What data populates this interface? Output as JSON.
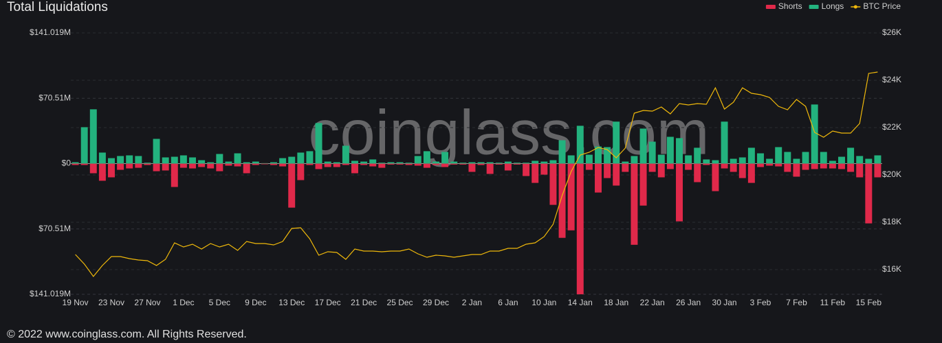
{
  "chart_data": {
    "type": "bar",
    "title": "Total Liquidations",
    "watermark": "coinglass.com",
    "footer": "© 2022 www.coinglass.com. All Rights Reserved.",
    "legend": "top-right",
    "grid": true,
    "categories": [
      "19 Nov",
      null,
      null,
      null,
      "23 Nov",
      null,
      null,
      null,
      "27 Nov",
      null,
      null,
      null,
      "1 Dec",
      null,
      null,
      null,
      "5 Dec",
      null,
      null,
      null,
      "9 Dec",
      null,
      null,
      null,
      "13 Dec",
      null,
      null,
      null,
      "17 Dec",
      null,
      null,
      null,
      "21 Dec",
      null,
      null,
      null,
      "25 Dec",
      null,
      null,
      null,
      "29 Dec",
      null,
      null,
      null,
      "2 Jan",
      null,
      null,
      null,
      "6 Jan",
      null,
      null,
      null,
      "10 Jan",
      null,
      null,
      null,
      "14 Jan",
      null,
      null,
      null,
      "18 Jan",
      null,
      null,
      null,
      "22 Jan",
      null,
      null,
      null,
      "26 Jan",
      null,
      null,
      null,
      "30 Jan",
      null,
      null,
      null,
      "3 Feb",
      null,
      null,
      null,
      "7 Feb",
      null,
      null,
      null,
      "11 Feb",
      null,
      null,
      null,
      "15 Feb",
      null
    ],
    "series": [
      {
        "name": "Shorts",
        "color": "#e0294a",
        "values": [
          -1.5,
          -1.5,
          -10.4,
          -18.5,
          -14.8,
          -6.7,
          -5.2,
          -4.5,
          -1.5,
          -8.2,
          -7.4,
          -25.2,
          -4.5,
          -5.2,
          -3.7,
          -5.2,
          -8.2,
          -2.2,
          -3.0,
          -10.4,
          -1.5,
          -0.7,
          -1.5,
          -3.0,
          -47.5,
          -17.8,
          -1.5,
          -5.9,
          -3.7,
          -3.7,
          -1.5,
          -10.4,
          -1.5,
          -3.0,
          -4.5,
          -1.0,
          -1.0,
          -1.5,
          -2.2,
          -4.5,
          -1.5,
          -3.7,
          -1.0,
          -1.0,
          -8.9,
          -1.5,
          -11.1,
          -1.0,
          -7.4,
          -1.0,
          -13.4,
          -20.8,
          -11.9,
          -44.5,
          -80.1,
          -72.0,
          -141.0,
          -6.7,
          -31.2,
          -15.6,
          -23.7,
          -8.9,
          -87.6,
          -45.3,
          -8.9,
          -14.8,
          -5.9,
          -62.3,
          -6.7,
          -20.0,
          -1.5,
          -29.7,
          -5.2,
          -8.9,
          -15.6,
          -20.8,
          -3.7,
          -2.2,
          -3.0,
          -8.9,
          -14.1,
          -6.7,
          -5.9,
          -5.2,
          -5.2,
          -5.9,
          -8.9,
          -14.8,
          -64.5,
          -14.8
        ]
      },
      {
        "name": "Longs",
        "color": "#23b27e",
        "values": [
          1.5,
          39.3,
          58.6,
          11.9,
          5.9,
          8.2,
          8.9,
          8.2,
          1.0,
          26.7,
          6.7,
          7.4,
          8.9,
          6.7,
          3.7,
          1.5,
          10.4,
          2.2,
          11.1,
          1.5,
          2.2,
          0.5,
          1.5,
          5.9,
          7.4,
          11.9,
          13.4,
          43.8,
          2.2,
          1.5,
          19.3,
          3.0,
          2.2,
          4.5,
          1.0,
          1.5,
          1.5,
          1.0,
          8.2,
          13.4,
          2.2,
          12.6,
          2.2,
          1.0,
          1.5,
          1.5,
          1.5,
          1.0,
          2.2,
          1.0,
          1.0,
          3.0,
          2.2,
          3.7,
          25.2,
          8.9,
          40.8,
          9.6,
          18.5,
          17.8,
          45.3,
          2.2,
          8.2,
          37.8,
          23.7,
          9.6,
          28.9,
          27.5,
          8.9,
          17.1,
          4.5,
          3.7,
          45.3,
          5.2,
          6.7,
          17.1,
          11.1,
          5.2,
          17.8,
          12.6,
          5.2,
          12.6,
          63.8,
          12.6,
          3.0,
          7.4,
          17.1,
          8.2,
          5.2,
          8.9
        ]
      },
      {
        "name": "BTC Price",
        "color": "#f0b90b",
        "type": "line",
        "axis": "y2",
        "values": [
          16638,
          16232,
          15710,
          16174,
          16551,
          16551,
          16464,
          16406,
          16377,
          16174,
          16435,
          17130,
          16957,
          17073,
          16870,
          17102,
          16957,
          17073,
          16812,
          17189,
          17102,
          17102,
          17044,
          17189,
          17739,
          17768,
          17305,
          16609,
          16754,
          16725,
          16435,
          16870,
          16783,
          16783,
          16754,
          16783,
          16783,
          16870,
          16667,
          16522,
          16609,
          16580,
          16522,
          16580,
          16638,
          16638,
          16783,
          16783,
          16899,
          16899,
          17073,
          17130,
          17392,
          17913,
          19131,
          20145,
          20841,
          20957,
          21160,
          21073,
          20725,
          21131,
          22609,
          22725,
          22696,
          22870,
          22580,
          23015,
          22957,
          23015,
          22986,
          23682,
          22783,
          23073,
          23682,
          23450,
          23392,
          23276,
          22899,
          22754,
          23189,
          22899,
          21798,
          21595,
          21856,
          21769,
          21769,
          22175,
          24290,
          24348
        ]
      }
    ],
    "ylim": [
      -141.019,
      141.019
    ],
    "yticks": [
      {
        "value": 141.019,
        "label": "$141.019M"
      },
      {
        "value": 70.51,
        "label": "$70.51M"
      },
      {
        "value": 0,
        "label": "$0"
      },
      {
        "value": -70.51,
        "label": "$70.51M"
      },
      {
        "value": -141.019,
        "label": "$141.019M"
      }
    ],
    "y2lim": [
      14957,
      26000
    ],
    "y2ticks": [
      {
        "value": 16000,
        "label": "$16K"
      },
      {
        "value": 18000,
        "label": "$18K"
      },
      {
        "value": 20000,
        "label": "$20K"
      },
      {
        "value": 22000,
        "label": "$22K"
      },
      {
        "value": 24000,
        "label": "$24K"
      },
      {
        "value": 26000,
        "label": "$26K"
      }
    ]
  }
}
